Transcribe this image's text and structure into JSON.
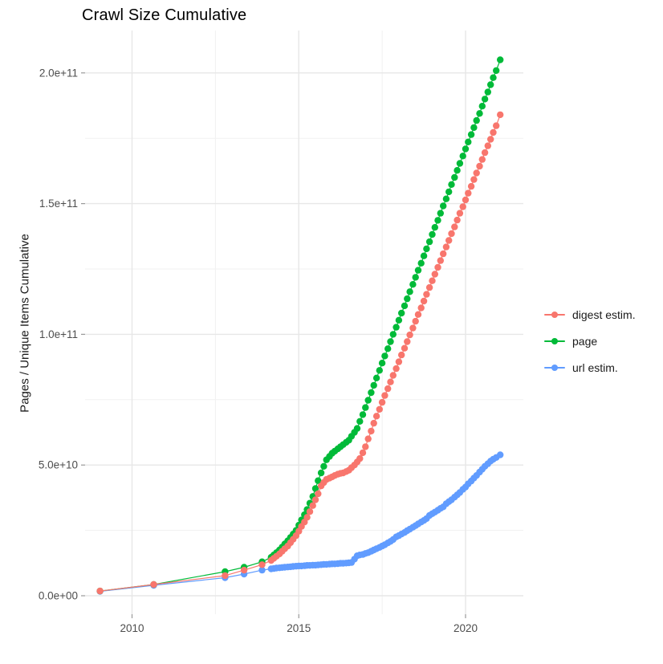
{
  "title": "Crawl Size Cumulative",
  "axes": {
    "y_label": "Pages / Unique Items Cumulative",
    "x_tick_labels": [
      "2010",
      "2015",
      "2020"
    ],
    "y_tick_labels": [
      "0.0e+00",
      "5.0e+10",
      "1.0e+11",
      "1.5e+11",
      "2.0e+11"
    ]
  },
  "legend": [
    {
      "label": "digest estim.",
      "color": "#F8766D"
    },
    {
      "label": "page",
      "color": "#00BA38"
    },
    {
      "label": "url estim.",
      "color": "#619CFF"
    }
  ],
  "colors": {
    "grid_major": "#e7e7e7",
    "grid_minor": "#f1f1f1",
    "tick": "#999999",
    "tick_label": "#4d4d4d",
    "title": "#000000"
  },
  "chart_data": {
    "type": "scatter",
    "style": "points+lines",
    "title": "Crawl Size Cumulative",
    "xlabel": "",
    "ylabel": "Pages / Unique Items Cumulative",
    "value_unit": "items, stored as billions (1e9); axis shows scientific notation",
    "x_axis": {
      "major_ticks": [
        2010,
        2015,
        2020
      ],
      "minor_ticks": [
        2012.5,
        2017.5
      ],
      "range": [
        2008.4,
        2021.73
      ]
    },
    "y_axis": {
      "major_ticks_e9": [
        0,
        50,
        100,
        150,
        200
      ],
      "minor_ticks_e9": [
        25,
        75,
        125,
        175
      ],
      "range_e9": [
        0,
        223.5
      ]
    },
    "grid": true,
    "legend_position": "right",
    "series": [
      {
        "name": "digest estim.",
        "color": "#F8766D",
        "points": [
          [
            2009.04,
            1.8
          ],
          [
            2010.65,
            4.3
          ],
          [
            2012.79,
            7.7
          ],
          [
            2013.36,
            9.8
          ],
          [
            2013.9,
            11.9
          ],
          [
            2014.17,
            13.5
          ],
          [
            2014.25,
            14.3
          ],
          [
            2014.33,
            15.1
          ],
          [
            2014.42,
            16
          ],
          [
            2014.5,
            17
          ],
          [
            2014.58,
            18
          ],
          [
            2014.67,
            19
          ],
          [
            2014.75,
            20.3
          ],
          [
            2014.83,
            21.6
          ],
          [
            2014.92,
            23
          ],
          [
            2015,
            24.7
          ],
          [
            2015.08,
            26.5
          ],
          [
            2015.17,
            28.2
          ],
          [
            2015.25,
            30
          ],
          [
            2015.33,
            32.2
          ],
          [
            2015.42,
            34.5
          ],
          [
            2015.5,
            36.7
          ],
          [
            2015.58,
            39
          ],
          [
            2015.67,
            42
          ],
          [
            2015.75,
            43.3
          ],
          [
            2015.83,
            44.5
          ],
          [
            2015.92,
            45
          ],
          [
            2016,
            45.5
          ],
          [
            2016.08,
            46
          ],
          [
            2016.17,
            46.5
          ],
          [
            2016.25,
            46.8
          ],
          [
            2016.33,
            47
          ],
          [
            2016.42,
            47.5
          ],
          [
            2016.5,
            48
          ],
          [
            2016.58,
            49
          ],
          [
            2016.67,
            50
          ],
          [
            2016.75,
            51.2
          ],
          [
            2016.83,
            52.5
          ],
          [
            2016.92,
            54.7
          ],
          [
            2017,
            57
          ],
          [
            2017.08,
            60
          ],
          [
            2017.17,
            63
          ],
          [
            2017.25,
            66
          ],
          [
            2017.33,
            68.7
          ],
          [
            2017.42,
            71.3
          ],
          [
            2017.5,
            74
          ],
          [
            2017.58,
            76.6
          ],
          [
            2017.67,
            79.2
          ],
          [
            2017.75,
            81.8
          ],
          [
            2017.83,
            84.3
          ],
          [
            2017.92,
            86.9
          ],
          [
            2018,
            89.5
          ],
          [
            2018.08,
            92.1
          ],
          [
            2018.17,
            94.7
          ],
          [
            2018.25,
            97.2
          ],
          [
            2018.33,
            99.8
          ],
          [
            2018.42,
            102.4
          ],
          [
            2018.5,
            105
          ],
          [
            2018.58,
            107.6
          ],
          [
            2018.67,
            110.1
          ],
          [
            2018.75,
            112.7
          ],
          [
            2018.83,
            115.3
          ],
          [
            2018.92,
            117.9
          ],
          [
            2019,
            120.5
          ],
          [
            2019.08,
            123
          ],
          [
            2019.17,
            125.6
          ],
          [
            2019.25,
            128.2
          ],
          [
            2019.33,
            130.8
          ],
          [
            2019.42,
            133.4
          ],
          [
            2019.5,
            135.9
          ],
          [
            2019.58,
            138.5
          ],
          [
            2019.67,
            141.1
          ],
          [
            2019.75,
            143.7
          ],
          [
            2019.83,
            146.3
          ],
          [
            2019.92,
            148.8
          ],
          [
            2020,
            151.4
          ],
          [
            2020.08,
            154
          ],
          [
            2020.17,
            156.6
          ],
          [
            2020.25,
            159.2
          ],
          [
            2020.33,
            161.7
          ],
          [
            2020.42,
            164.3
          ],
          [
            2020.5,
            166.9
          ],
          [
            2020.58,
            169.5
          ],
          [
            2020.67,
            172.1
          ],
          [
            2020.75,
            174.6
          ],
          [
            2020.83,
            177.2
          ],
          [
            2020.92,
            179.8
          ],
          [
            2021.04,
            184
          ]
        ]
      },
      {
        "name": "page",
        "color": "#00BA38",
        "points": [
          [
            2009.04,
            1.8
          ],
          [
            2010.65,
            4.3
          ],
          [
            2012.79,
            9.2
          ],
          [
            2013.36,
            10.9
          ],
          [
            2013.9,
            13
          ],
          [
            2014.17,
            14.7
          ],
          [
            2014.25,
            15.6
          ],
          [
            2014.33,
            16.5
          ],
          [
            2014.42,
            17.5
          ],
          [
            2014.5,
            18.6
          ],
          [
            2014.58,
            19.8
          ],
          [
            2014.67,
            21
          ],
          [
            2014.75,
            22.3
          ],
          [
            2014.83,
            23.6
          ],
          [
            2014.92,
            25
          ],
          [
            2015,
            27
          ],
          [
            2015.08,
            29
          ],
          [
            2015.17,
            31
          ],
          [
            2015.25,
            33
          ],
          [
            2015.33,
            35.4
          ],
          [
            2015.42,
            38
          ],
          [
            2015.5,
            41
          ],
          [
            2015.58,
            44
          ],
          [
            2015.67,
            47
          ],
          [
            2015.75,
            49.5
          ],
          [
            2015.83,
            52
          ],
          [
            2015.92,
            53.3
          ],
          [
            2016,
            54.5
          ],
          [
            2016.08,
            55.3
          ],
          [
            2016.17,
            56.2
          ],
          [
            2016.25,
            57
          ],
          [
            2016.33,
            57.8
          ],
          [
            2016.42,
            58.7
          ],
          [
            2016.5,
            59.5
          ],
          [
            2016.58,
            61
          ],
          [
            2016.67,
            62.5
          ],
          [
            2016.75,
            64
          ],
          [
            2016.83,
            66.7
          ],
          [
            2016.92,
            69.3
          ],
          [
            2017,
            72
          ],
          [
            2017.08,
            74.8
          ],
          [
            2017.17,
            77.7
          ],
          [
            2017.25,
            80.5
          ],
          [
            2017.33,
            83.3
          ],
          [
            2017.42,
            86.2
          ],
          [
            2017.5,
            89
          ],
          [
            2017.58,
            91.7
          ],
          [
            2017.67,
            94.5
          ],
          [
            2017.75,
            97.2
          ],
          [
            2017.83,
            100
          ],
          [
            2017.92,
            102.7
          ],
          [
            2018,
            105.4
          ],
          [
            2018.08,
            108.1
          ],
          [
            2018.17,
            110.9
          ],
          [
            2018.25,
            113.6
          ],
          [
            2018.33,
            116.3
          ],
          [
            2018.42,
            119.1
          ],
          [
            2018.5,
            121.8
          ],
          [
            2018.58,
            124.5
          ],
          [
            2018.67,
            127.2
          ],
          [
            2018.75,
            130
          ],
          [
            2018.83,
            132.7
          ],
          [
            2018.92,
            135.4
          ],
          [
            2019,
            138.2
          ],
          [
            2019.08,
            140.9
          ],
          [
            2019.17,
            143.6
          ],
          [
            2019.25,
            146.3
          ],
          [
            2019.33,
            149.1
          ],
          [
            2019.42,
            151.8
          ],
          [
            2019.5,
            154.5
          ],
          [
            2019.58,
            157.3
          ],
          [
            2019.67,
            160
          ],
          [
            2019.75,
            162.7
          ],
          [
            2019.83,
            165.4
          ],
          [
            2019.92,
            168.2
          ],
          [
            2020,
            170.9
          ],
          [
            2020.08,
            173.6
          ],
          [
            2020.17,
            176.4
          ],
          [
            2020.25,
            179.1
          ],
          [
            2020.33,
            181.8
          ],
          [
            2020.42,
            184.5
          ],
          [
            2020.5,
            187.3
          ],
          [
            2020.58,
            190
          ],
          [
            2020.67,
            192.7
          ],
          [
            2020.75,
            195.5
          ],
          [
            2020.83,
            198.2
          ],
          [
            2020.92,
            200.9
          ],
          [
            2021.04,
            205
          ]
        ]
      },
      {
        "name": "url estim.",
        "color": "#619CFF",
        "points": [
          [
            2009.04,
            1.7
          ],
          [
            2010.65,
            4
          ],
          [
            2012.79,
            6.9
          ],
          [
            2013.36,
            8.3
          ],
          [
            2013.9,
            9.8
          ],
          [
            2014.17,
            10.3
          ],
          [
            2014.25,
            10.4
          ],
          [
            2014.33,
            10.6
          ],
          [
            2014.42,
            10.7
          ],
          [
            2014.5,
            10.8
          ],
          [
            2014.58,
            10.9
          ],
          [
            2014.67,
            11
          ],
          [
            2014.75,
            11.1
          ],
          [
            2014.83,
            11.2
          ],
          [
            2014.92,
            11.3
          ],
          [
            2015,
            11.4
          ],
          [
            2015.08,
            11.4
          ],
          [
            2015.17,
            11.5
          ],
          [
            2015.25,
            11.6
          ],
          [
            2015.33,
            11.6
          ],
          [
            2015.42,
            11.7
          ],
          [
            2015.5,
            11.7
          ],
          [
            2015.58,
            11.8
          ],
          [
            2015.67,
            11.9
          ],
          [
            2015.75,
            12
          ],
          [
            2015.83,
            12
          ],
          [
            2015.92,
            12.1
          ],
          [
            2016,
            12.2
          ],
          [
            2016.08,
            12.2
          ],
          [
            2016.17,
            12.3
          ],
          [
            2016.25,
            12.4
          ],
          [
            2016.33,
            12.4
          ],
          [
            2016.42,
            12.5
          ],
          [
            2016.5,
            12.6
          ],
          [
            2016.58,
            12.7
          ],
          [
            2016.67,
            14
          ],
          [
            2016.75,
            15.3
          ],
          [
            2016.83,
            15.6
          ],
          [
            2016.92,
            15.8
          ],
          [
            2017,
            16.2
          ],
          [
            2017.08,
            16.5
          ],
          [
            2017.17,
            17
          ],
          [
            2017.25,
            17.5
          ],
          [
            2017.33,
            18
          ],
          [
            2017.42,
            18.5
          ],
          [
            2017.5,
            19
          ],
          [
            2017.58,
            19.5
          ],
          [
            2017.67,
            20.2
          ],
          [
            2017.75,
            20.8
          ],
          [
            2017.83,
            21.5
          ],
          [
            2017.92,
            22.5
          ],
          [
            2018,
            23
          ],
          [
            2018.08,
            23.6
          ],
          [
            2018.17,
            24.2
          ],
          [
            2018.25,
            24.9
          ],
          [
            2018.33,
            25.5
          ],
          [
            2018.42,
            26.2
          ],
          [
            2018.5,
            26.8
          ],
          [
            2018.58,
            27.5
          ],
          [
            2018.67,
            28.2
          ],
          [
            2018.75,
            28.8
          ],
          [
            2018.83,
            29.5
          ],
          [
            2018.92,
            30.7
          ],
          [
            2019,
            31.4
          ],
          [
            2019.08,
            32
          ],
          [
            2019.17,
            32.7
          ],
          [
            2019.25,
            33.4
          ],
          [
            2019.33,
            34
          ],
          [
            2019.42,
            35.2
          ],
          [
            2019.5,
            36
          ],
          [
            2019.58,
            36.7
          ],
          [
            2019.67,
            37.7
          ],
          [
            2019.75,
            38.6
          ],
          [
            2019.83,
            39.5
          ],
          [
            2019.92,
            40.7
          ],
          [
            2020,
            41.6
          ],
          [
            2020.08,
            42.8
          ],
          [
            2020.17,
            43.9
          ],
          [
            2020.25,
            45
          ],
          [
            2020.33,
            46
          ],
          [
            2020.42,
            47.3
          ],
          [
            2020.5,
            48.4
          ],
          [
            2020.58,
            49.5
          ],
          [
            2020.67,
            50.5
          ],
          [
            2020.75,
            51.5
          ],
          [
            2020.83,
            52.2
          ],
          [
            2020.92,
            52.9
          ],
          [
            2021.04,
            53.9
          ]
        ]
      }
    ]
  }
}
